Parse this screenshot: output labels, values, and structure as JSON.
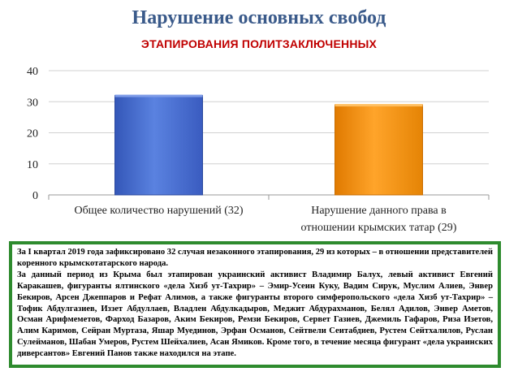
{
  "slide": {
    "title": "Нарушение основных свобод"
  },
  "chart_data": {
    "type": "bar",
    "title": "ЭТАПИРОВАНИЯ ПОЛИТЗАКЛЮЧЕННЫХ",
    "categories": [
      [
        "Общее количество нарушений (32)"
      ],
      [
        "Нарушение данного права в",
        "отношении крымских татар (29)"
      ]
    ],
    "values": [
      32,
      29
    ],
    "bar_colors": [
      "#4a6fd0",
      "#f0900c"
    ],
    "ylim": [
      0,
      40
    ],
    "yticks": [
      0,
      10,
      20,
      30,
      40
    ],
    "grid": true,
    "legend": "none"
  },
  "textbox": {
    "paragraph1": "За I квартал 2019 года зафиксировано 32 случая незаконного этапирования, 29 из которых – в отношении представителей коренного крымскотатарского народа.",
    "paragraph2": "За данный период из Крыма был этапирован украинский активист Владимир Балух, левый активист Евгений Каракашев, фигуранты ялтинского «дела Хизб ут-Тахрир» – Эмир-Усеин Куку, Вадим Сирук, Муслим Алиев, Энвер Бекиров, Арсен Джеппаров и Рефат Алимов, а также фигуранты второго симферопольского «дела Хизб ут-Тахрир» – Тофик Абдулгазиев, Иззет Абдуллаев, Владлен Абдулкадыров, Меджит Абдурахманов, Белял Адилов, Энвер Аметов, Осман Арифмеметов, Фарход Базаров, Аким Бекиров, Ремзи Бекиров, Сервет Газиев, Джемиль Гафаров, Риза Изетов, Алим Каримов, Сейран Муртаза, Яшар Муедин­ов, Эрфан Османов, Сейтвели Сеитабдиев, Рустем Сейтхалилов, Руслан Сулейманов, Шабан Умеров, Рустем Шейхалиев, Асан Ямиков. Кроме того, в течение месяца фигурант «дела украинских диверсантов» Евгений Панов также находился на этапе."
  }
}
